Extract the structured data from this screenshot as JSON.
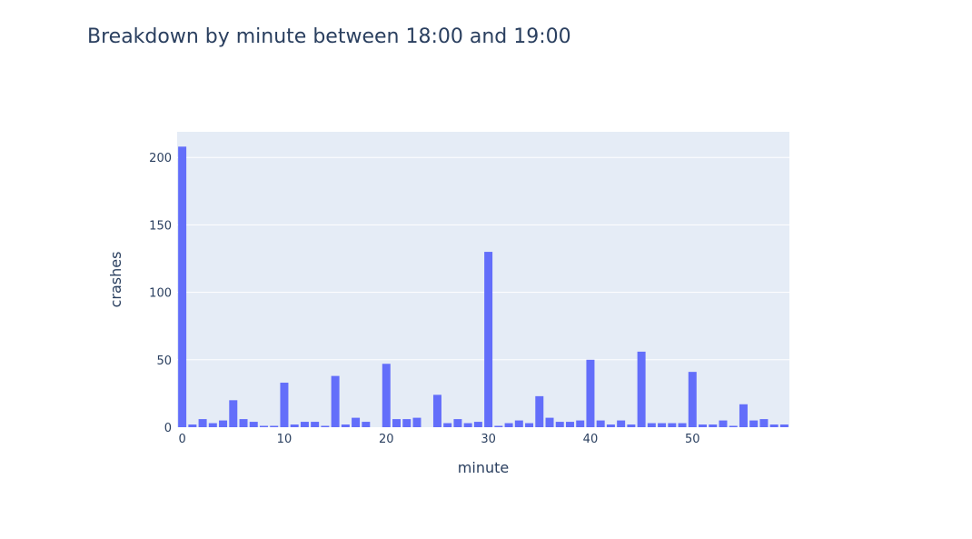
{
  "chart_data": {
    "type": "bar",
    "title": "Breakdown by minute between 18:00 and 19:00",
    "xlabel": "minute",
    "ylabel": "crashes",
    "x": [
      0,
      1,
      2,
      3,
      4,
      5,
      6,
      7,
      8,
      9,
      10,
      11,
      12,
      13,
      14,
      15,
      16,
      17,
      18,
      19,
      20,
      21,
      22,
      23,
      24,
      25,
      26,
      27,
      28,
      29,
      30,
      31,
      32,
      33,
      34,
      35,
      36,
      37,
      38,
      39,
      40,
      41,
      42,
      43,
      44,
      45,
      46,
      47,
      48,
      49,
      50,
      51,
      52,
      53,
      54,
      55,
      56,
      57,
      58,
      59
    ],
    "values": [
      208,
      2,
      6,
      3,
      5,
      20,
      6,
      4,
      1,
      1,
      33,
      2,
      4,
      4,
      1,
      38,
      2,
      7,
      4,
      0,
      47,
      6,
      6,
      7,
      0,
      24,
      3,
      6,
      3,
      4,
      130,
      1,
      3,
      5,
      3,
      23,
      7,
      4,
      4,
      5,
      50,
      5,
      2,
      5,
      2,
      56,
      3,
      3,
      3,
      3,
      41,
      2,
      2,
      5,
      1,
      17,
      5,
      6,
      2,
      2
    ],
    "xlim": [
      -0.5,
      59.5
    ],
    "ylim": [
      0,
      219
    ],
    "x_ticks": [
      0,
      10,
      20,
      30,
      40,
      50
    ],
    "y_ticks": [
      0,
      50,
      100,
      150,
      200
    ],
    "grid": true,
    "colors": {
      "bar": "#636efa",
      "plot_bg": "#e5ecf6",
      "grid": "#ffffff",
      "text": "#2a3f5f"
    }
  }
}
